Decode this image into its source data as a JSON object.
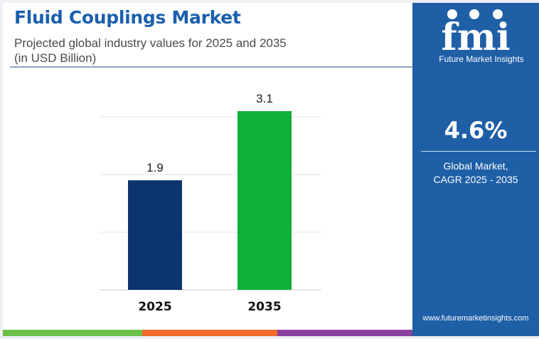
{
  "header": {
    "title": "Fluid Couplings Market",
    "subtitle_line1": "Projected global industry values for 2025 and 2035",
    "subtitle_line2": "(in USD Billion)"
  },
  "chart_data": {
    "type": "bar",
    "categories": [
      "2025",
      "2035"
    ],
    "values": [
      1.9,
      3.1
    ],
    "value_labels": [
      "1.9",
      "3.1"
    ],
    "bar_colors": [
      "#0c3570",
      "#0fb03a"
    ],
    "grid": true,
    "ylim": [
      0,
      3.1
    ]
  },
  "sidebar": {
    "logo_letters": "fmi",
    "logo_text": "Future Market Insights",
    "cagr_value": "4.6%",
    "cagr_label_line1": "Global Market,",
    "cagr_label_line2": "CAGR 2025 - 2035",
    "website": "www.futuremarketinsights.com"
  },
  "colors": {
    "title": "#1b5fae",
    "sidebar_bg": "#1e5fa6",
    "stripe": [
      "#6cc04a",
      "#f26b2b",
      "#8b3fa0"
    ]
  }
}
